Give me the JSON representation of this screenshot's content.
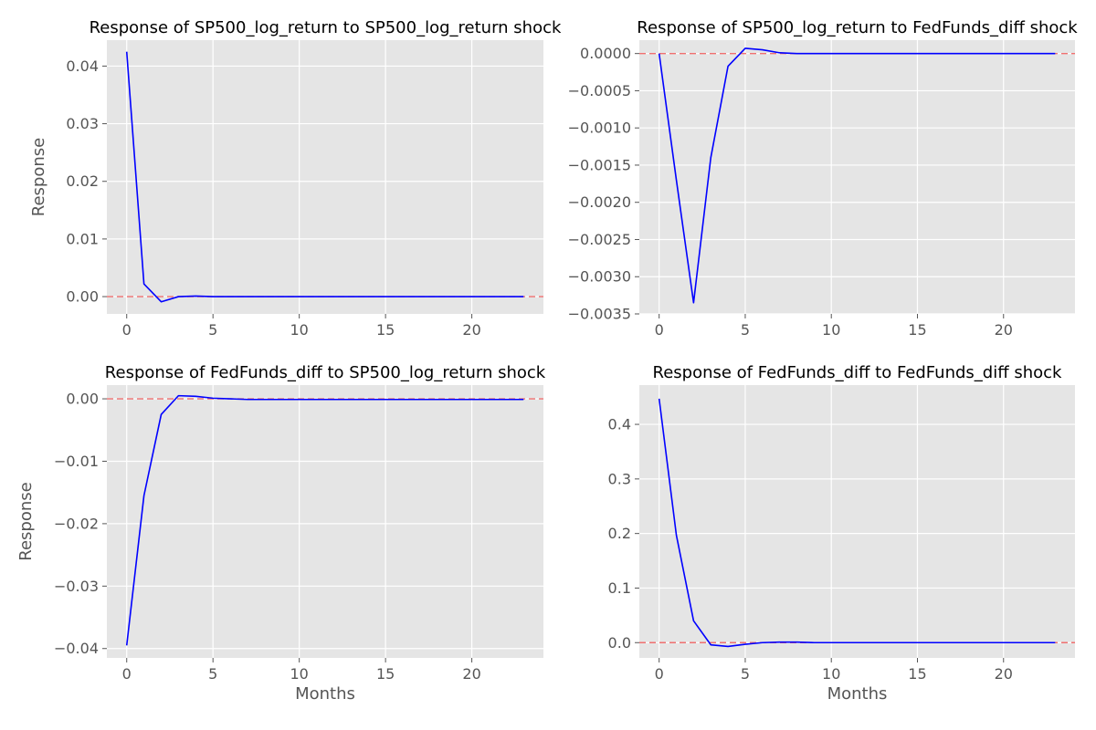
{
  "chart_data": [
    {
      "type": "line",
      "title": "Response of SP500_log_return to SP500_log_return shock",
      "xlabel": "",
      "ylabel": "Response",
      "xlim": [
        -1.15,
        24.15
      ],
      "ylim": [
        -0.003,
        0.0445
      ],
      "xticks": [
        0,
        5,
        10,
        15,
        20
      ],
      "xtick_labels": [
        "0",
        "5",
        "10",
        "15",
        "20"
      ],
      "yticks": [
        0,
        0.01,
        0.02,
        0.03,
        0.04
      ],
      "ytick_labels": [
        "0.00",
        "0.01",
        "0.02",
        "0.03",
        "0.04"
      ],
      "grid": true,
      "x": [
        0,
        1,
        2,
        3,
        4,
        5,
        6,
        7,
        8,
        9,
        10,
        11,
        12,
        13,
        14,
        15,
        16,
        17,
        18,
        19,
        20,
        21,
        22,
        23
      ],
      "series": [
        {
          "values": [
            0.0425,
            0.0022,
            -0.0009,
            0.0,
            0.0001,
            0.0,
            0.0,
            0.0,
            0.0,
            0.0,
            0.0,
            0.0,
            0.0,
            0.0,
            0.0,
            0.0,
            0.0,
            0.0,
            0.0,
            0.0,
            0.0,
            0.0,
            0.0,
            0.0
          ],
          "color": "#0000ff"
        }
      ],
      "reference_line": {
        "y": 0,
        "color": "#f07070",
        "style": "dashed"
      }
    },
    {
      "type": "line",
      "title": "Response of SP500_log_return to FedFunds_diff shock",
      "xlabel": "",
      "ylabel": "",
      "xlim": [
        -1.15,
        24.15
      ],
      "ylim": [
        -0.0035,
        0.00018
      ],
      "xticks": [
        0,
        5,
        10,
        15,
        20
      ],
      "xtick_labels": [
        "0",
        "5",
        "10",
        "15",
        "20"
      ],
      "yticks": [
        0.0,
        -0.0005,
        -0.001,
        -0.0015,
        -0.002,
        -0.0025,
        -0.003,
        -0.0035
      ],
      "ytick_labels": [
        "0.0000",
        "−0.0005",
        "−0.0010",
        "−0.0015",
        "−0.0020",
        "−0.0025",
        "−0.0030",
        "−0.0035"
      ],
      "grid": true,
      "x": [
        0,
        1,
        2,
        3,
        4,
        5,
        6,
        7,
        8,
        9,
        10,
        11,
        12,
        13,
        14,
        15,
        16,
        17,
        18,
        19,
        20,
        21,
        22,
        23
      ],
      "series": [
        {
          "values": [
            0.0,
            -0.0017,
            -0.00335,
            -0.0014,
            -0.00017,
            7e-05,
            5e-05,
            1e-05,
            0.0,
            0.0,
            0.0,
            0.0,
            0.0,
            0.0,
            0.0,
            0.0,
            0.0,
            0.0,
            0.0,
            0.0,
            0.0,
            0.0,
            0.0,
            0.0
          ],
          "color": "#0000ff"
        }
      ],
      "reference_line": {
        "y": 0,
        "color": "#f07070",
        "style": "dashed"
      }
    },
    {
      "type": "line",
      "title": "Response of FedFunds_diff to SP500_log_return shock",
      "xlabel": "Months",
      "ylabel": "Response",
      "xlim": [
        -1.15,
        24.15
      ],
      "ylim": [
        -0.0415,
        0.0022
      ],
      "xticks": [
        0,
        5,
        10,
        15,
        20
      ],
      "xtick_labels": [
        "0",
        "5",
        "10",
        "15",
        "20"
      ],
      "yticks": [
        0.0,
        -0.01,
        -0.02,
        -0.03,
        -0.04
      ],
      "ytick_labels": [
        "0.00",
        "−0.01",
        "−0.02",
        "−0.03",
        "−0.04"
      ],
      "grid": true,
      "x": [
        0,
        1,
        2,
        3,
        4,
        5,
        6,
        7,
        8,
        9,
        10,
        11,
        12,
        13,
        14,
        15,
        16,
        17,
        18,
        19,
        20,
        21,
        22,
        23
      ],
      "series": [
        {
          "values": [
            -0.0395,
            -0.0155,
            -0.0025,
            0.0005,
            0.0004,
            0.0001,
            0.0,
            -0.0001,
            -0.0001,
            -0.0001,
            -0.0001,
            -0.0001,
            -0.0001,
            -0.0001,
            -0.0001,
            -0.0001,
            -0.0001,
            -0.0001,
            -0.0001,
            -0.0001,
            -0.0001,
            -0.0001,
            -0.0001,
            -0.0001
          ],
          "color": "#0000ff"
        }
      ],
      "reference_line": {
        "y": 0,
        "color": "#f07070",
        "style": "dashed"
      }
    },
    {
      "type": "line",
      "title": "Response of FedFunds_diff to FedFunds_diff shock",
      "xlabel": "Months",
      "ylabel": "",
      "xlim": [
        -1.15,
        24.15
      ],
      "ylim": [
        -0.028,
        0.472
      ],
      "xticks": [
        0,
        5,
        10,
        15,
        20
      ],
      "xtick_labels": [
        "0",
        "5",
        "10",
        "15",
        "20"
      ],
      "yticks": [
        0.0,
        0.1,
        0.2,
        0.3,
        0.4
      ],
      "ytick_labels": [
        "0.0",
        "0.1",
        "0.2",
        "0.3",
        "0.4"
      ],
      "grid": true,
      "x": [
        0,
        1,
        2,
        3,
        4,
        5,
        6,
        7,
        8,
        9,
        10,
        11,
        12,
        13,
        14,
        15,
        16,
        17,
        18,
        19,
        20,
        21,
        22,
        23
      ],
      "series": [
        {
          "values": [
            0.447,
            0.197,
            0.04,
            -0.004,
            -0.007,
            -0.003,
            0.0,
            0.001,
            0.001,
            0.0,
            0.0,
            0.0,
            0.0,
            0.0,
            0.0,
            0.0,
            0.0,
            0.0,
            0.0,
            0.0,
            0.0,
            0.0,
            0.0,
            0.0
          ],
          "color": "#0000ff"
        }
      ],
      "reference_line": {
        "y": 0,
        "color": "#f07070",
        "style": "dashed"
      }
    }
  ]
}
